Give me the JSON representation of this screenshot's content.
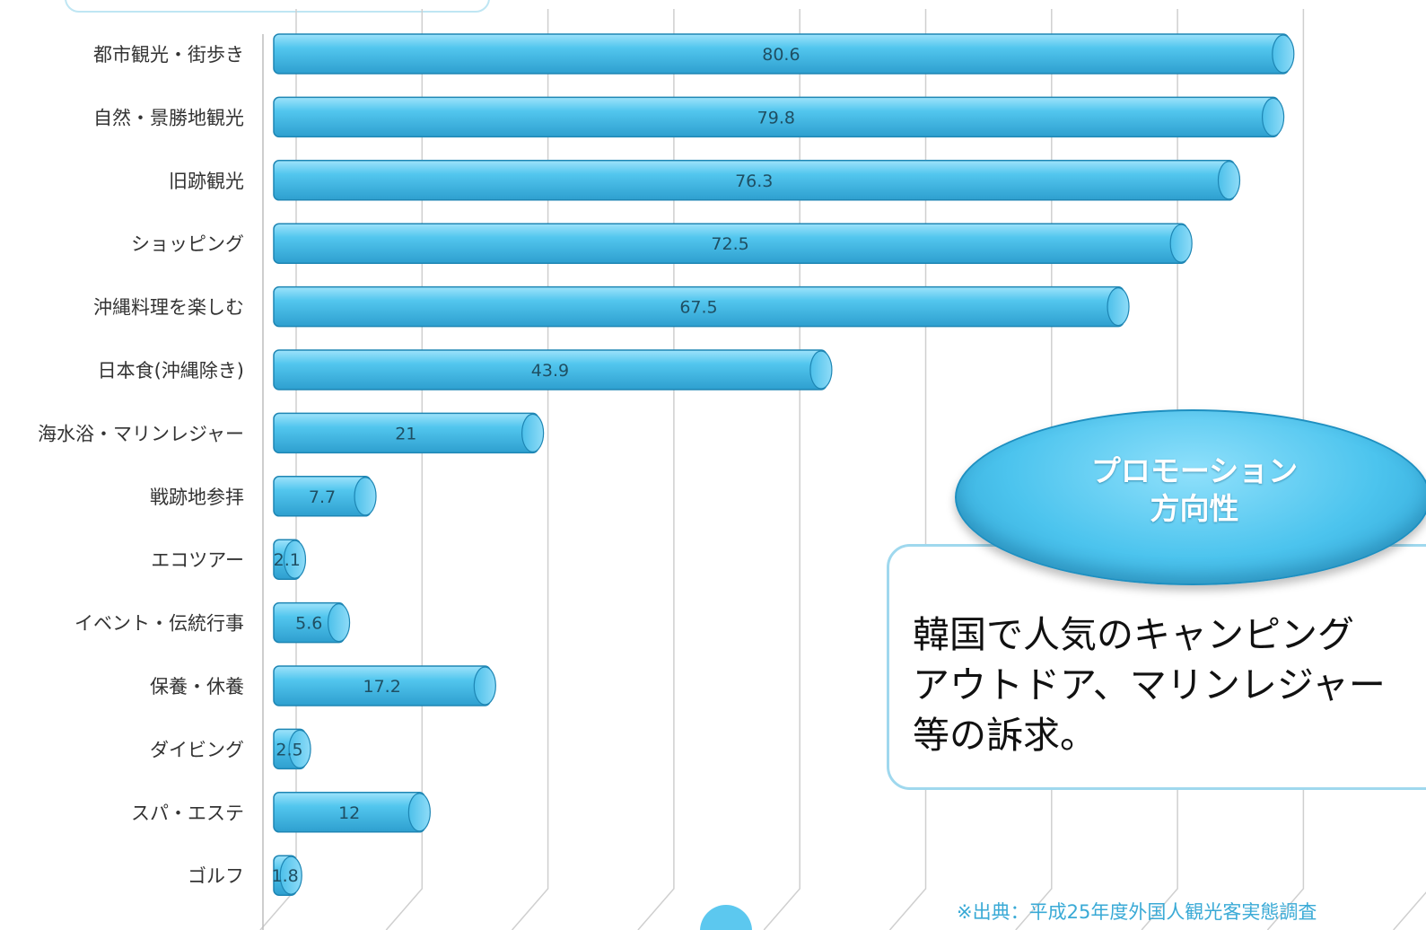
{
  "chart_data": {
    "type": "bar",
    "orientation": "horizontal",
    "categories": [
      "都市観光・街歩き",
      "自然・景勝地観光",
      "旧跡観光",
      "ショッピング",
      "沖縄料理を楽しむ",
      "日本食(沖縄除き)",
      "海水浴・マリンレジャー",
      "戦跡地参拝",
      "エコツアー",
      "イベント・伝統行事",
      "保養・休養",
      "ダイビング",
      "スパ・エステ",
      "ゴルフ"
    ],
    "values": [
      80.6,
      79.8,
      76.3,
      72.5,
      67.5,
      43.9,
      21,
      7.7,
      2.1,
      5.6,
      17.2,
      2.5,
      12,
      1.8
    ],
    "value_labels": [
      "80.6",
      "79.8",
      "76.3",
      "72.5",
      "67.5",
      "43.9",
      "21",
      "7.7",
      "2.1",
      "5.6",
      "17.2",
      "2.5",
      "12",
      "1.8"
    ],
    "xlim": [
      0,
      90
    ],
    "grid": true,
    "colors": {
      "bar": "#4cc0ea",
      "bar_edge": "#1e86b4",
      "grid": "#cfcfcf"
    }
  },
  "callout": {
    "title_line1": "プロモーション",
    "title_line2": "方向性",
    "body_line1": "韓国で人気のキャンピング",
    "body_line2": "アウトドア、マリンレジャー",
    "body_line3": "等の訴求。"
  },
  "footnote": "※出典：平成25年度外国人観光客実態調査"
}
